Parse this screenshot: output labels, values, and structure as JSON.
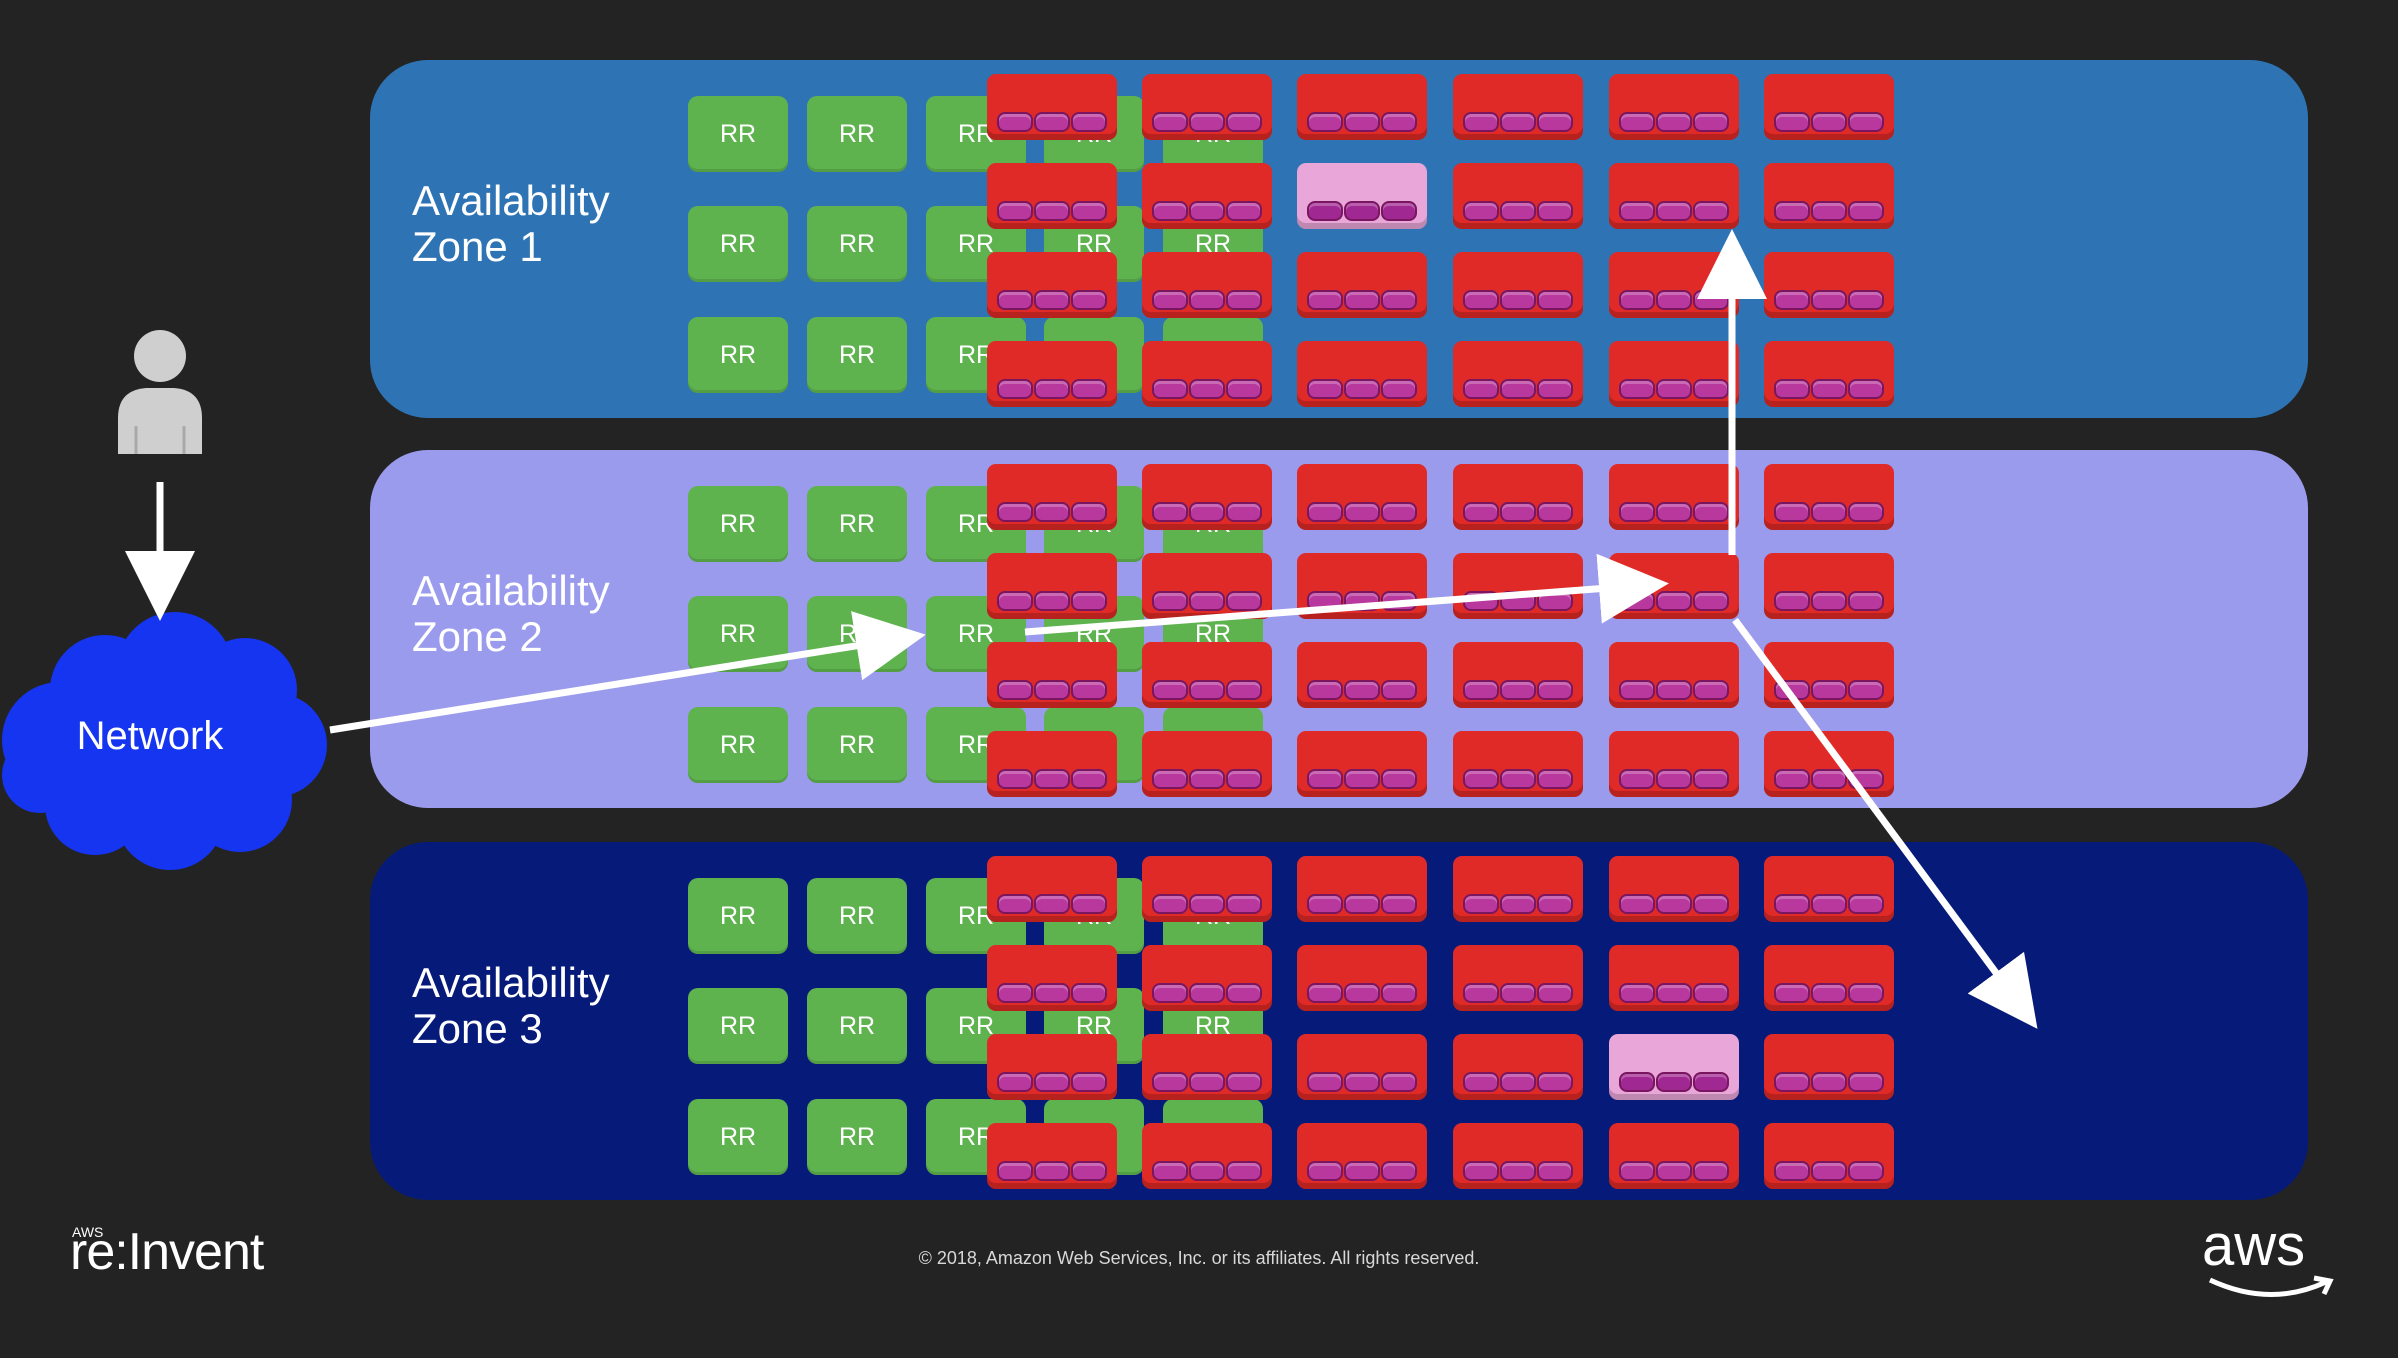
{
  "zones": [
    {
      "label_line1": "Availability",
      "label_line2": "Zone 1",
      "color": "#2e74b5"
    },
    {
      "label_line1": "Availability",
      "label_line2": "Zone 2",
      "color": "#9b9bed"
    },
    {
      "label_line1": "Availability",
      "label_line2": "Zone 3",
      "color": "#061a7a"
    }
  ],
  "rr_label": "RR",
  "colors": {
    "rr": "#5fb34f",
    "host": "#e02a27",
    "host_highlight": "#e8a7d8",
    "disk": "#b8389d",
    "network_cloud": "#1535f0",
    "arrow": "#ffffff"
  },
  "highlighted_hosts": [
    {
      "zone": 1,
      "row": 2,
      "col": 3
    },
    {
      "zone": 3,
      "row": 3,
      "col": 5
    }
  ],
  "user_icon": "user-icon",
  "network_label": "Network",
  "footer": {
    "copyright": "© 2018, Amazon Web Services, Inc. or its affiliates. All rights reserved.",
    "reinvent_small": "AWS",
    "reinvent_logo": "re:Invent",
    "aws_logo": "aws"
  }
}
